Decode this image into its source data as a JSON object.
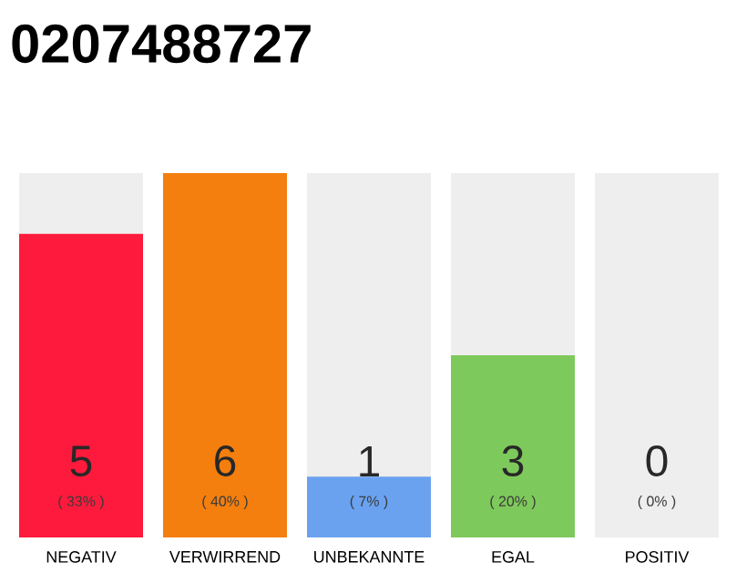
{
  "chart_data": {
    "type": "bar",
    "title": "0207488727",
    "categories": [
      "NEGATIV",
      "VERWIRREND",
      "UNBEKANNTE",
      "EGAL",
      "POSITIV"
    ],
    "values": [
      5,
      6,
      1,
      3,
      0
    ],
    "colors": [
      "#fe1a3c",
      "#f47f0e",
      "#6aa2f0",
      "#7ec95b",
      null
    ],
    "ylim": [
      0,
      6
    ],
    "data_labels": true,
    "bands": [
      {
        "axis": "x",
        "from": "NEGATIV",
        "to": "NEGATIV",
        "color": "#eeeeee"
      },
      {
        "axis": "x",
        "from": "UNBEKANNTE",
        "to": "UNBEKANNTE",
        "color": "#eeeeee"
      },
      {
        "axis": "x",
        "from": "EGAL",
        "to": "EGAL",
        "color": "#eeeeee"
      },
      {
        "axis": "x",
        "from": "POSITIV",
        "to": "POSITIV",
        "color": "#eeeeee"
      }
    ],
    "annotations": [
      "( 33% )",
      "( 40% )",
      "( 7% )",
      "( 20% )",
      "( 0% )"
    ]
  }
}
